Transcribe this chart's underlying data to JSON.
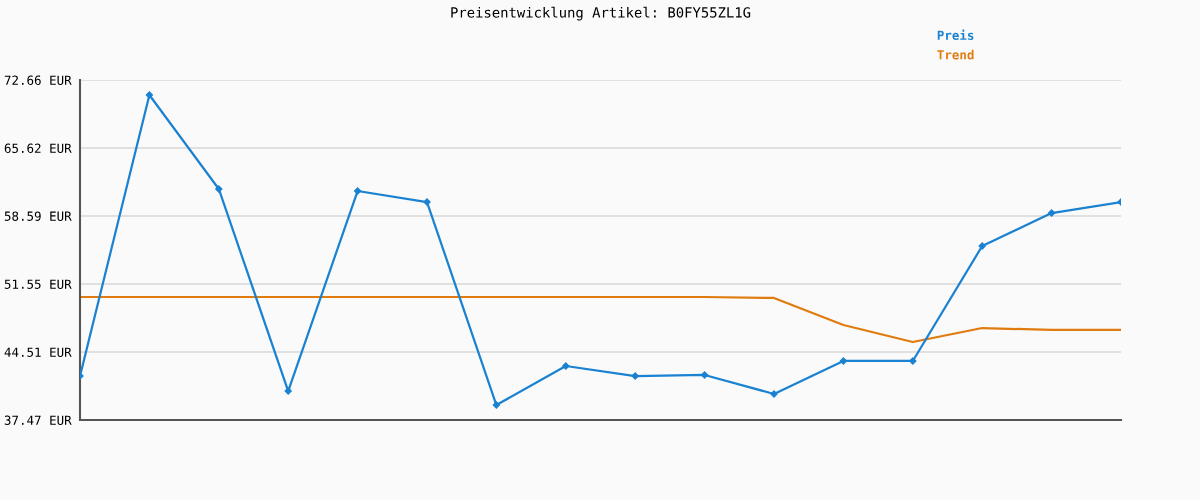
{
  "chart_data": {
    "type": "line",
    "title": "Preisentwicklung Artikel: B0FY55ZL1G",
    "categories": [
      null,
      null,
      null,
      null,
      null,
      null,
      null,
      null,
      null,
      null,
      null,
      null,
      null,
      null,
      null,
      null
    ],
    "series": [
      {
        "name": "Preis",
        "color": "#1a82d1",
        "marker": "diamond",
        "values": [
          42.02,
          71.11,
          61.38,
          40.47,
          61.17,
          60.03,
          39.02,
          43.06,
          42.02,
          42.13,
          40.16,
          43.58,
          43.58,
          55.48,
          58.89,
          60.03
        ]
      },
      {
        "name": "Trend",
        "color": "#e07b0f",
        "marker": "none",
        "values": [
          50.2,
          50.2,
          50.2,
          50.2,
          50.2,
          50.2,
          50.2,
          50.2,
          50.2,
          50.2,
          50.1,
          47.3,
          45.54,
          46.99,
          46.79,
          46.79
        ]
      }
    ],
    "ylim": [
      37.47,
      72.66
    ],
    "yticks": [
      {
        "value": 37.47,
        "label": "37.47 EUR"
      },
      {
        "value": 44.51,
        "label": "44.51 EUR"
      },
      {
        "value": 51.55,
        "label": "51.55 EUR"
      },
      {
        "value": 58.59,
        "label": "58.59 EUR"
      },
      {
        "value": 65.62,
        "label": "65.62 EUR"
      },
      {
        "value": 72.66,
        "label": "72.66 EUR"
      }
    ],
    "grid": "y",
    "legend": "top right",
    "line_style": "solid"
  }
}
